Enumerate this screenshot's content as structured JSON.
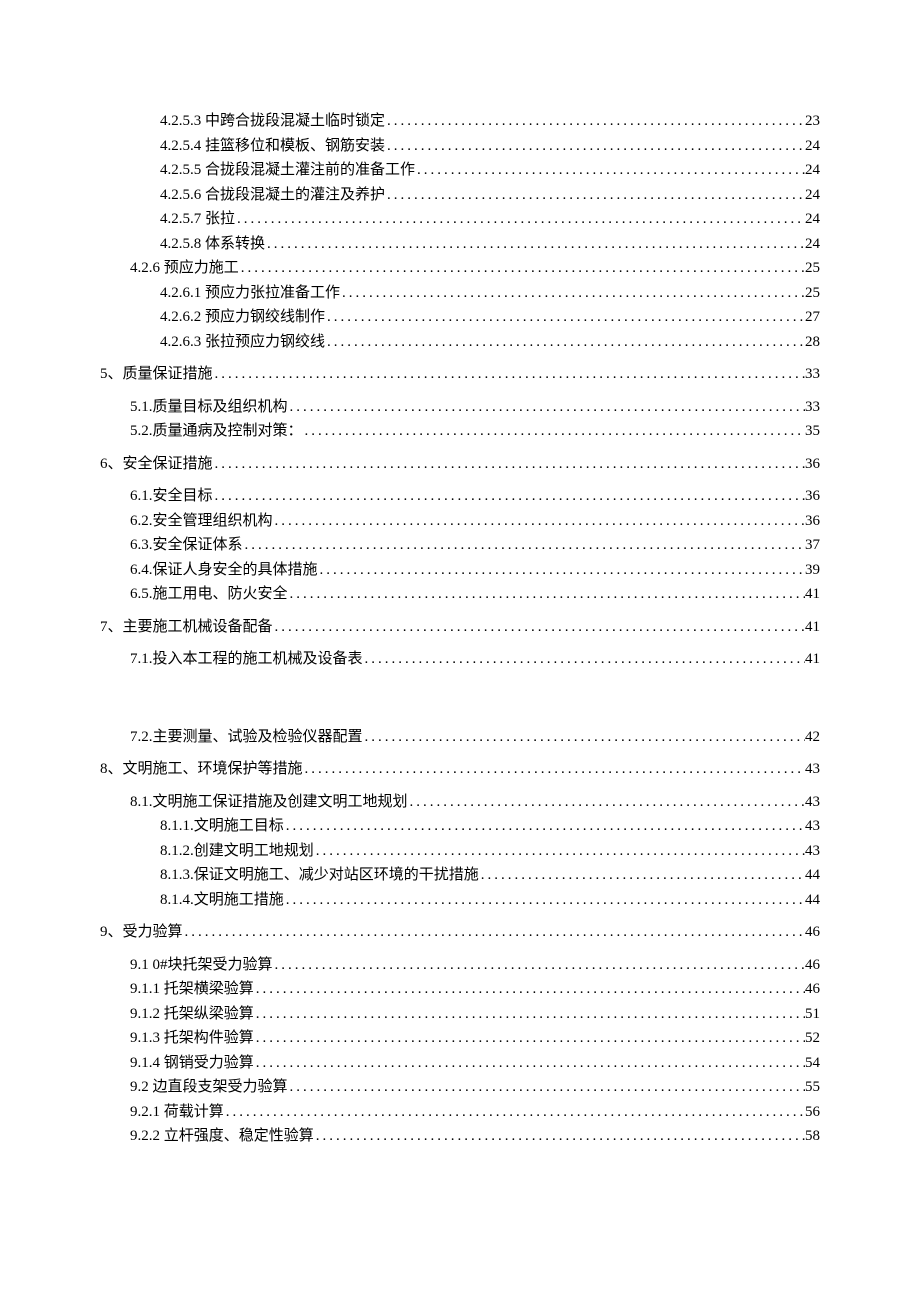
{
  "entries": [
    {
      "label": "4.2.5.3 中跨合拢段混凝土临时锁定",
      "page": "23",
      "level": 2,
      "gap": ""
    },
    {
      "label": "4.2.5.4 挂篮移位和模板、钢筋安装",
      "page": "24",
      "level": 2,
      "gap": ""
    },
    {
      "label": "4.2.5.5 合拢段混凝土灌注前的准备工作",
      "page": "24",
      "level": 2,
      "gap": ""
    },
    {
      "label": "4.2.5.6 合拢段混凝土的灌注及养护",
      "page": "24",
      "level": 2,
      "gap": ""
    },
    {
      "label": "4.2.5.7 张拉",
      "page": "24",
      "level": 2,
      "gap": ""
    },
    {
      "label": "4.2.5.8 体系转换",
      "page": "24",
      "level": 2,
      "gap": ""
    },
    {
      "label": "4.2.6 预应力施工",
      "page": "25",
      "level": 1,
      "gap": ""
    },
    {
      "label": "4.2.6.1 预应力张拉准备工作",
      "page": "25",
      "level": 2,
      "gap": ""
    },
    {
      "label": "4.2.6.2 预应力钢绞线制作",
      "page": "27",
      "level": 2,
      "gap": ""
    },
    {
      "label": "4.2.6.3 张拉预应力钢绞线",
      "page": "28",
      "level": 2,
      "gap": ""
    },
    {
      "label": "5、质量保证措施 ",
      "page": "33",
      "level": 0,
      "gap": "section-gap"
    },
    {
      "label": "5.1.质量目标及组织机构 ",
      "page": "33",
      "level": 1,
      "gap": "section-gap"
    },
    {
      "label": "5.2.质量通病及控制对策： ",
      "page": "35",
      "level": 1,
      "gap": ""
    },
    {
      "label": "6、安全保证措施 ",
      "page": "36",
      "level": 0,
      "gap": "section-gap"
    },
    {
      "label": "6.1.安全目标 ",
      "page": "36",
      "level": 1,
      "gap": "section-gap"
    },
    {
      "label": "6.2.安全管理组织机构 ",
      "page": "36",
      "level": 1,
      "gap": ""
    },
    {
      "label": "6.3.安全保证体系 ",
      "page": "37",
      "level": 1,
      "gap": ""
    },
    {
      "label": "6.4.保证人身安全的具体措施 ",
      "page": "39",
      "level": 1,
      "gap": ""
    },
    {
      "label": "6.5.施工用电、防火安全 ",
      "page": "41",
      "level": 1,
      "gap": ""
    },
    {
      "label": "7、主要施工机械设备配备 ",
      "page": "41",
      "level": 0,
      "gap": "section-gap"
    },
    {
      "label": "7.1.投入本工程的施工机械及设备表 ",
      "page": "41",
      "level": 1,
      "gap": "section-gap"
    },
    {
      "label": "7.2.主要测量、试验及检验仪器配置 ",
      "page": "42",
      "level": 1,
      "gap": "block-gap"
    },
    {
      "label": "8、文明施工、环境保护等措施",
      "page": "43",
      "level": 0,
      "gap": "section-gap"
    },
    {
      "label": "8.1.文明施工保证措施及创建文明工地规划 ",
      "page": "43",
      "level": 1,
      "gap": "section-gap"
    },
    {
      "label": "8.1.1.文明施工目标",
      "page": "43",
      "level": 2,
      "gap": ""
    },
    {
      "label": "8.1.2.创建文明工地规划",
      "page": "43",
      "level": 2,
      "gap": ""
    },
    {
      "label": "8.1.3.保证文明施工、减少对站区环境的干扰措施",
      "page": "44",
      "level": 2,
      "gap": ""
    },
    {
      "label": "8.1.4.文明施工措施",
      "page": "44",
      "level": 2,
      "gap": ""
    },
    {
      "label": "9、受力验算 ",
      "page": "46",
      "level": 0,
      "gap": "section-gap"
    },
    {
      "label": "9.1  0#块托架受力验算",
      "page": "46",
      "level": 1,
      "gap": "section-gap"
    },
    {
      "label": "9.1.1 托架横梁验算",
      "page": "46",
      "level": 1,
      "gap": ""
    },
    {
      "label": "9.1.2 托架纵梁验算",
      "page": "51",
      "level": 1,
      "gap": ""
    },
    {
      "label": "9.1.3 托架构件验算",
      "page": "52",
      "level": 1,
      "gap": ""
    },
    {
      "label": "9.1.4 钢销受力验算",
      "page": "54",
      "level": 1,
      "gap": ""
    },
    {
      "label": "9.2  边直段支架受力验算",
      "page": "55",
      "level": 1,
      "gap": ""
    },
    {
      "label": "9.2.1 荷载计算",
      "page": "56",
      "level": 1,
      "gap": ""
    },
    {
      "label": "9.2.2  立杆强度、稳定性验算",
      "page": "58",
      "level": 1,
      "gap": ""
    }
  ]
}
